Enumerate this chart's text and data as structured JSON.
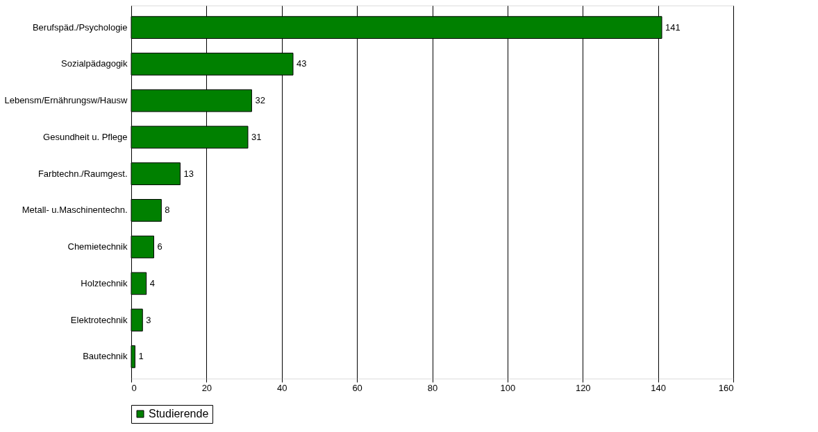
{
  "chart_data": {
    "type": "bar",
    "orientation": "horizontal",
    "categories": [
      "Berufspäd./Psychologie",
      "Sozialpädagogik",
      "Lebensm/Ernährungsw/Hausw",
      "Gesundheit u. Pflege",
      "Farbtechn./Raumgest.",
      "Metall- u.Maschinentechn.",
      "Chemietechnik",
      "Holztechnik",
      "Elektrotechnik",
      "Bautechnik"
    ],
    "series": [
      {
        "name": "Studierende",
        "color": "#008000",
        "values": [
          141,
          43,
          32,
          31,
          13,
          8,
          6,
          4,
          3,
          1
        ]
      }
    ],
    "xlim": [
      0,
      160
    ],
    "xticks": [
      0,
      20,
      40,
      60,
      80,
      100,
      120,
      140,
      160
    ],
    "grid": "x",
    "legend": "bottom",
    "data_labels": true
  }
}
